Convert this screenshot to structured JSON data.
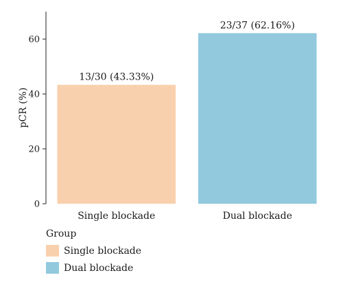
{
  "chart_data": {
    "type": "bar",
    "categories": [
      "Single blockade",
      "Dual blockade"
    ],
    "values": [
      43.33,
      62.16
    ],
    "data_labels": [
      "13/30 (43.33%)",
      "23/37 (62.16%)"
    ],
    "colors": [
      "#f9d0ad",
      "#92c9dd"
    ],
    "title": "",
    "xlabel": "",
    "ylabel": "pCR (%)",
    "ylim": [
      0,
      70
    ],
    "yticks": [
      0,
      20,
      40,
      60
    ],
    "grid": false,
    "legend": {
      "title": "Group",
      "placement": "bottom-left",
      "items": [
        "Single blockade",
        "Dual blockade"
      ]
    }
  }
}
